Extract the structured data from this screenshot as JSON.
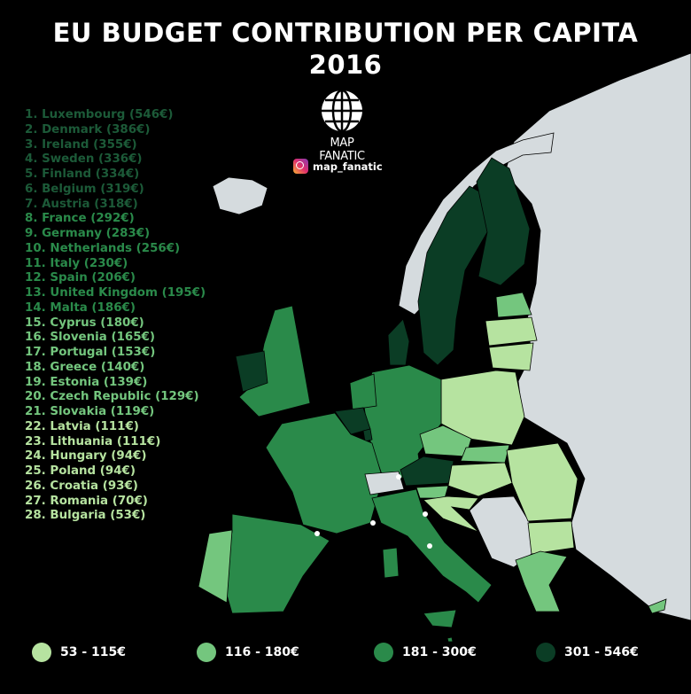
{
  "title": {
    "line1": "EU BUDGET CONTRIBUTION PER CAPITA",
    "line2": "2016"
  },
  "logo": {
    "line1": "MAP",
    "line2": "FANATIC"
  },
  "instagram": {
    "handle": "map_fanatic"
  },
  "colors": {
    "tier1": "#b6e3a0",
    "tier2": "#74c67e",
    "tier3": "#2a8a4a",
    "tier4": "#0b3d25",
    "nonEU": "#d5dbde",
    "sea": "#000000"
  },
  "legend": [
    {
      "label": "53 - 115€",
      "tier": "tier1"
    },
    {
      "label": "116 - 180€",
      "tier": "tier2"
    },
    {
      "label": "181 - 300€",
      "tier": "tier3"
    },
    {
      "label": "301 - 546€",
      "tier": "tier4"
    }
  ],
  "ranking": [
    {
      "text": "1. Luxembourg (546€)",
      "tier": "tier4"
    },
    {
      "text": "2. Denmark (386€)",
      "tier": "tier4"
    },
    {
      "text": "3. Ireland (355€)",
      "tier": "tier4"
    },
    {
      "text": "4. Sweden (336€)",
      "tier": "tier4"
    },
    {
      "text": "5. Finland (334€)",
      "tier": "tier4"
    },
    {
      "text": "6. Belgium (319€)",
      "tier": "tier4"
    },
    {
      "text": "7. Austria (318€)",
      "tier": "tier4"
    },
    {
      "text": "8. France (292€)",
      "tier": "tier3"
    },
    {
      "text": "9. Germany (283€)",
      "tier": "tier3"
    },
    {
      "text": "10. Netherlands (256€)",
      "tier": "tier3"
    },
    {
      "text": "11. Italy (230€)",
      "tier": "tier3"
    },
    {
      "text": "12. Spain (206€)",
      "tier": "tier3"
    },
    {
      "text": "13. United Kingdom (195€)",
      "tier": "tier3"
    },
    {
      "text": "14. Malta (186€)",
      "tier": "tier3"
    },
    {
      "text": "15. Cyprus (180€)",
      "tier": "tier2"
    },
    {
      "text": "16. Slovenia (165€)",
      "tier": "tier2"
    },
    {
      "text": "17. Portugal (153€)",
      "tier": "tier2"
    },
    {
      "text": "18. Greece (140€)",
      "tier": "tier2"
    },
    {
      "text": "19. Estonia (139€)",
      "tier": "tier2"
    },
    {
      "text": "20. Czech Republic (129€)",
      "tier": "tier2"
    },
    {
      "text": "21. Slovakia (119€)",
      "tier": "tier2"
    },
    {
      "text": "22. Latvia (111€)",
      "tier": "tier1"
    },
    {
      "text": "23. Lithuania (111€)",
      "tier": "tier1"
    },
    {
      "text": "24. Hungary (94€)",
      "tier": "tier1"
    },
    {
      "text": "25. Poland (94€)",
      "tier": "tier1"
    },
    {
      "text": "26. Croatia (93€)",
      "tier": "tier1"
    },
    {
      "text": "27. Romania (70€)",
      "tier": "tier1"
    },
    {
      "text": "28. Bulgaria (53€)",
      "tier": "tier1"
    }
  ]
}
